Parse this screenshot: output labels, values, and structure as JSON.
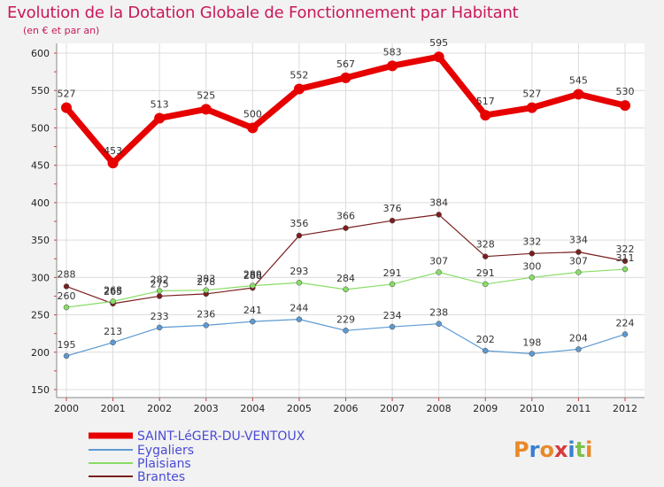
{
  "header": {
    "title": "Evolution de la Dotation Globale de Fonctionnement par Habitant",
    "subtitle": "(en € et par an)"
  },
  "brand": "Proxiti",
  "chart_data": {
    "type": "line",
    "title": "Evolution de la Dotation Globale de Fonctionnement par Habitant",
    "subtitle": "(en € et par an)",
    "x": [
      2000,
      2001,
      2002,
      2003,
      2004,
      2005,
      2006,
      2007,
      2008,
      2009,
      2010,
      2011,
      2012
    ],
    "ylim": [
      150,
      600
    ],
    "yticks": [
      150,
      200,
      250,
      300,
      350,
      400,
      450,
      500,
      550,
      600
    ],
    "grid": true,
    "legend_position": "bottom-left",
    "series": [
      {
        "name": "SAINT-LéGER-DU-VENTOUX",
        "color": "#e60000",
        "values": [
          527,
          453,
          513,
          525,
          500,
          552,
          567,
          583,
          595,
          517,
          527,
          545,
          530
        ]
      },
      {
        "name": "Eygaliers",
        "color": "#5e9ad1",
        "values": [
          195,
          213,
          233,
          236,
          241,
          244,
          229,
          234,
          238,
          202,
          198,
          204,
          224
        ]
      },
      {
        "name": "Plaisians",
        "color": "#88dd66",
        "values": [
          260,
          268,
          282,
          283,
          289,
          293,
          284,
          291,
          307,
          291,
          300,
          307,
          311
        ]
      },
      {
        "name": "Brantes",
        "color": "#7a1f1f",
        "values": [
          288,
          265,
          275,
          278,
          286,
          356,
          366,
          376,
          384,
          328,
          332,
          334,
          322
        ]
      }
    ]
  }
}
